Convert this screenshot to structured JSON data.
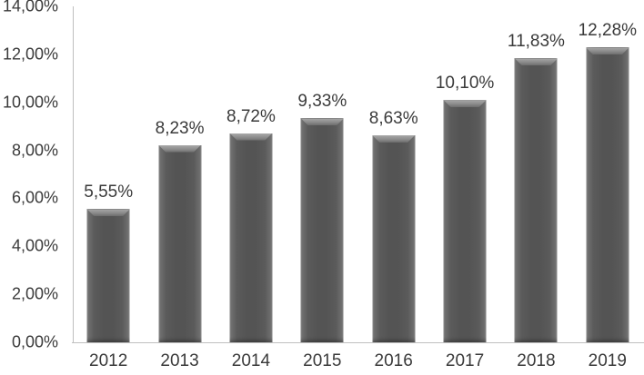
{
  "chart_data": {
    "type": "bar",
    "title": "",
    "xlabel": "",
    "ylabel": "",
    "categories": [
      "2012",
      "2013",
      "2014",
      "2015",
      "2016",
      "2017",
      "2018",
      "2019"
    ],
    "values": [
      5.55,
      8.23,
      8.72,
      9.33,
      8.63,
      10.1,
      11.83,
      12.28
    ],
    "value_labels": [
      "5,55%",
      "8,23%",
      "8,72%",
      "9,33%",
      "8,63%",
      "10,10%",
      "11,83%",
      "12,28%"
    ],
    "ylim": [
      0,
      14
    ],
    "y_tick_step": 2,
    "y_tick_labels": [
      "0,00%",
      "2,00%",
      "4,00%",
      "6,00%",
      "8,00%",
      "10,00%",
      "12,00%",
      "14,00%"
    ],
    "grid": false,
    "legend": false,
    "colors": {
      "bar_body": "#545454",
      "bar_edge_highlight": "#919191",
      "bar_top_bevel": "#a9a9a9",
      "axis_line": "#bfbfbf",
      "text": "#3a3a3a",
      "background": "#ffffff"
    }
  }
}
